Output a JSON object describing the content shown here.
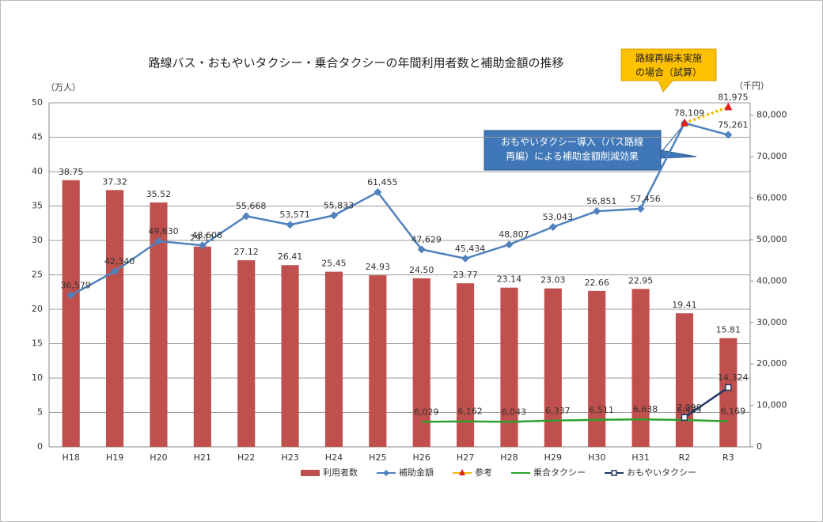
{
  "chart_data": {
    "type": "bar-line",
    "title": "路線バス・おもやいタクシー・乗合タクシーの年間利用者数と補助金額の推移",
    "y_label": "（万人）",
    "y2_label": "（千円）",
    "categories": [
      "H18",
      "H19",
      "H20",
      "H21",
      "H22",
      "H23",
      "H24",
      "H25",
      "H26",
      "H27",
      "H28",
      "H29",
      "H30",
      "H31",
      "R2",
      "R3"
    ],
    "ylim": [
      0,
      50
    ],
    "yticks": [
      0,
      5,
      10,
      15,
      20,
      25,
      30,
      35,
      40,
      45,
      50
    ],
    "y2lim": [
      0,
      83000
    ],
    "y2ticks": [
      0,
      {
        "value": 10000,
        "label": "10,000"
      },
      {
        "value": 20000,
        "label": "20,000"
      },
      {
        "value": 30000,
        "label": "30,000"
      },
      {
        "value": 40000,
        "label": "40,000"
      },
      {
        "value": 50000,
        "label": "50,000"
      },
      {
        "value": 60000,
        "label": "60,000"
      },
      {
        "value": 70000,
        "label": "70,000"
      },
      {
        "value": 80000,
        "label": "80,000"
      }
    ],
    "grid": true,
    "legend": "bottom",
    "series": [
      {
        "name": "利用者数",
        "kind": "bar",
        "color": "#c0504d",
        "values": [
          38.75,
          37.32,
          35.52,
          29.11,
          27.12,
          26.41,
          25.45,
          24.93,
          24.5,
          23.77,
          23.14,
          23.03,
          22.66,
          22.95,
          19.41,
          15.81
        ],
        "value_labels": [
          "38.75",
          "37.32",
          "35.52",
          "29.11",
          "27.12",
          "26.41",
          "25.45",
          "24.93",
          "24.50",
          "23.77",
          "23.14",
          "23.03",
          "22.66",
          "22.95",
          "19.41",
          "15.81"
        ]
      },
      {
        "name": "補助金額",
        "kind": "line",
        "axis": "y2",
        "color": "#4f81bd",
        "marker": "diamond",
        "values": [
          36579,
          42340,
          49630,
          48608,
          55668,
          53571,
          55833,
          61455,
          47629,
          45434,
          48807,
          53043,
          56851,
          57456,
          78109,
          75261
        ],
        "value_labels": [
          "36,579",
          "42,340",
          "49,630",
          "48,608",
          "55,668",
          "53,571",
          "55,833",
          "61,455",
          "47,629",
          "45,434",
          "48,807",
          "53,043",
          "56,851",
          "57,456",
          "78,109",
          "75,261"
        ]
      },
      {
        "name": "参考",
        "kind": "line",
        "axis": "y2",
        "color": "#f5b800",
        "marker": "triangle",
        "marker_color": "#e02020",
        "dashed": true,
        "values": [
          null,
          null,
          null,
          null,
          null,
          null,
          null,
          null,
          null,
          null,
          null,
          null,
          null,
          null,
          78109,
          81975
        ],
        "value_labels": [
          null,
          null,
          null,
          null,
          null,
          null,
          null,
          null,
          null,
          null,
          null,
          null,
          null,
          null,
          null,
          "81,975"
        ]
      },
      {
        "name": "乗合タクシー",
        "kind": "line",
        "axis": "y2",
        "color": "#2ca02c",
        "marker": "none",
        "values": [
          null,
          null,
          null,
          null,
          null,
          null,
          null,
          null,
          6029,
          6162,
          6043,
          6337,
          6511,
          6638,
          6485,
          6169
        ],
        "value_labels": [
          null,
          null,
          null,
          null,
          null,
          null,
          null,
          null,
          "6,029",
          "6,162",
          "6,043",
          "6,337",
          "6,511",
          "6,638",
          "6,485",
          "6,169"
        ]
      },
      {
        "name": "おもやいタクシー",
        "kind": "line",
        "axis": "y2",
        "color": "#1f3864",
        "marker": "square",
        "values": [
          null,
          null,
          null,
          null,
          null,
          null,
          null,
          null,
          null,
          null,
          null,
          null,
          null,
          null,
          7099,
          14324
        ],
        "value_labels": [
          null,
          null,
          null,
          null,
          null,
          null,
          null,
          null,
          null,
          null,
          null,
          null,
          null,
          null,
          "7,099",
          "14,324"
        ]
      }
    ],
    "annotations": [
      {
        "lines": [
          "路線再編未実施",
          "の場合（試算）"
        ]
      },
      {
        "lines": [
          "おもやいタクシー導入（バス路線",
          "再編）による補助金額削減効果"
        ]
      }
    ]
  }
}
